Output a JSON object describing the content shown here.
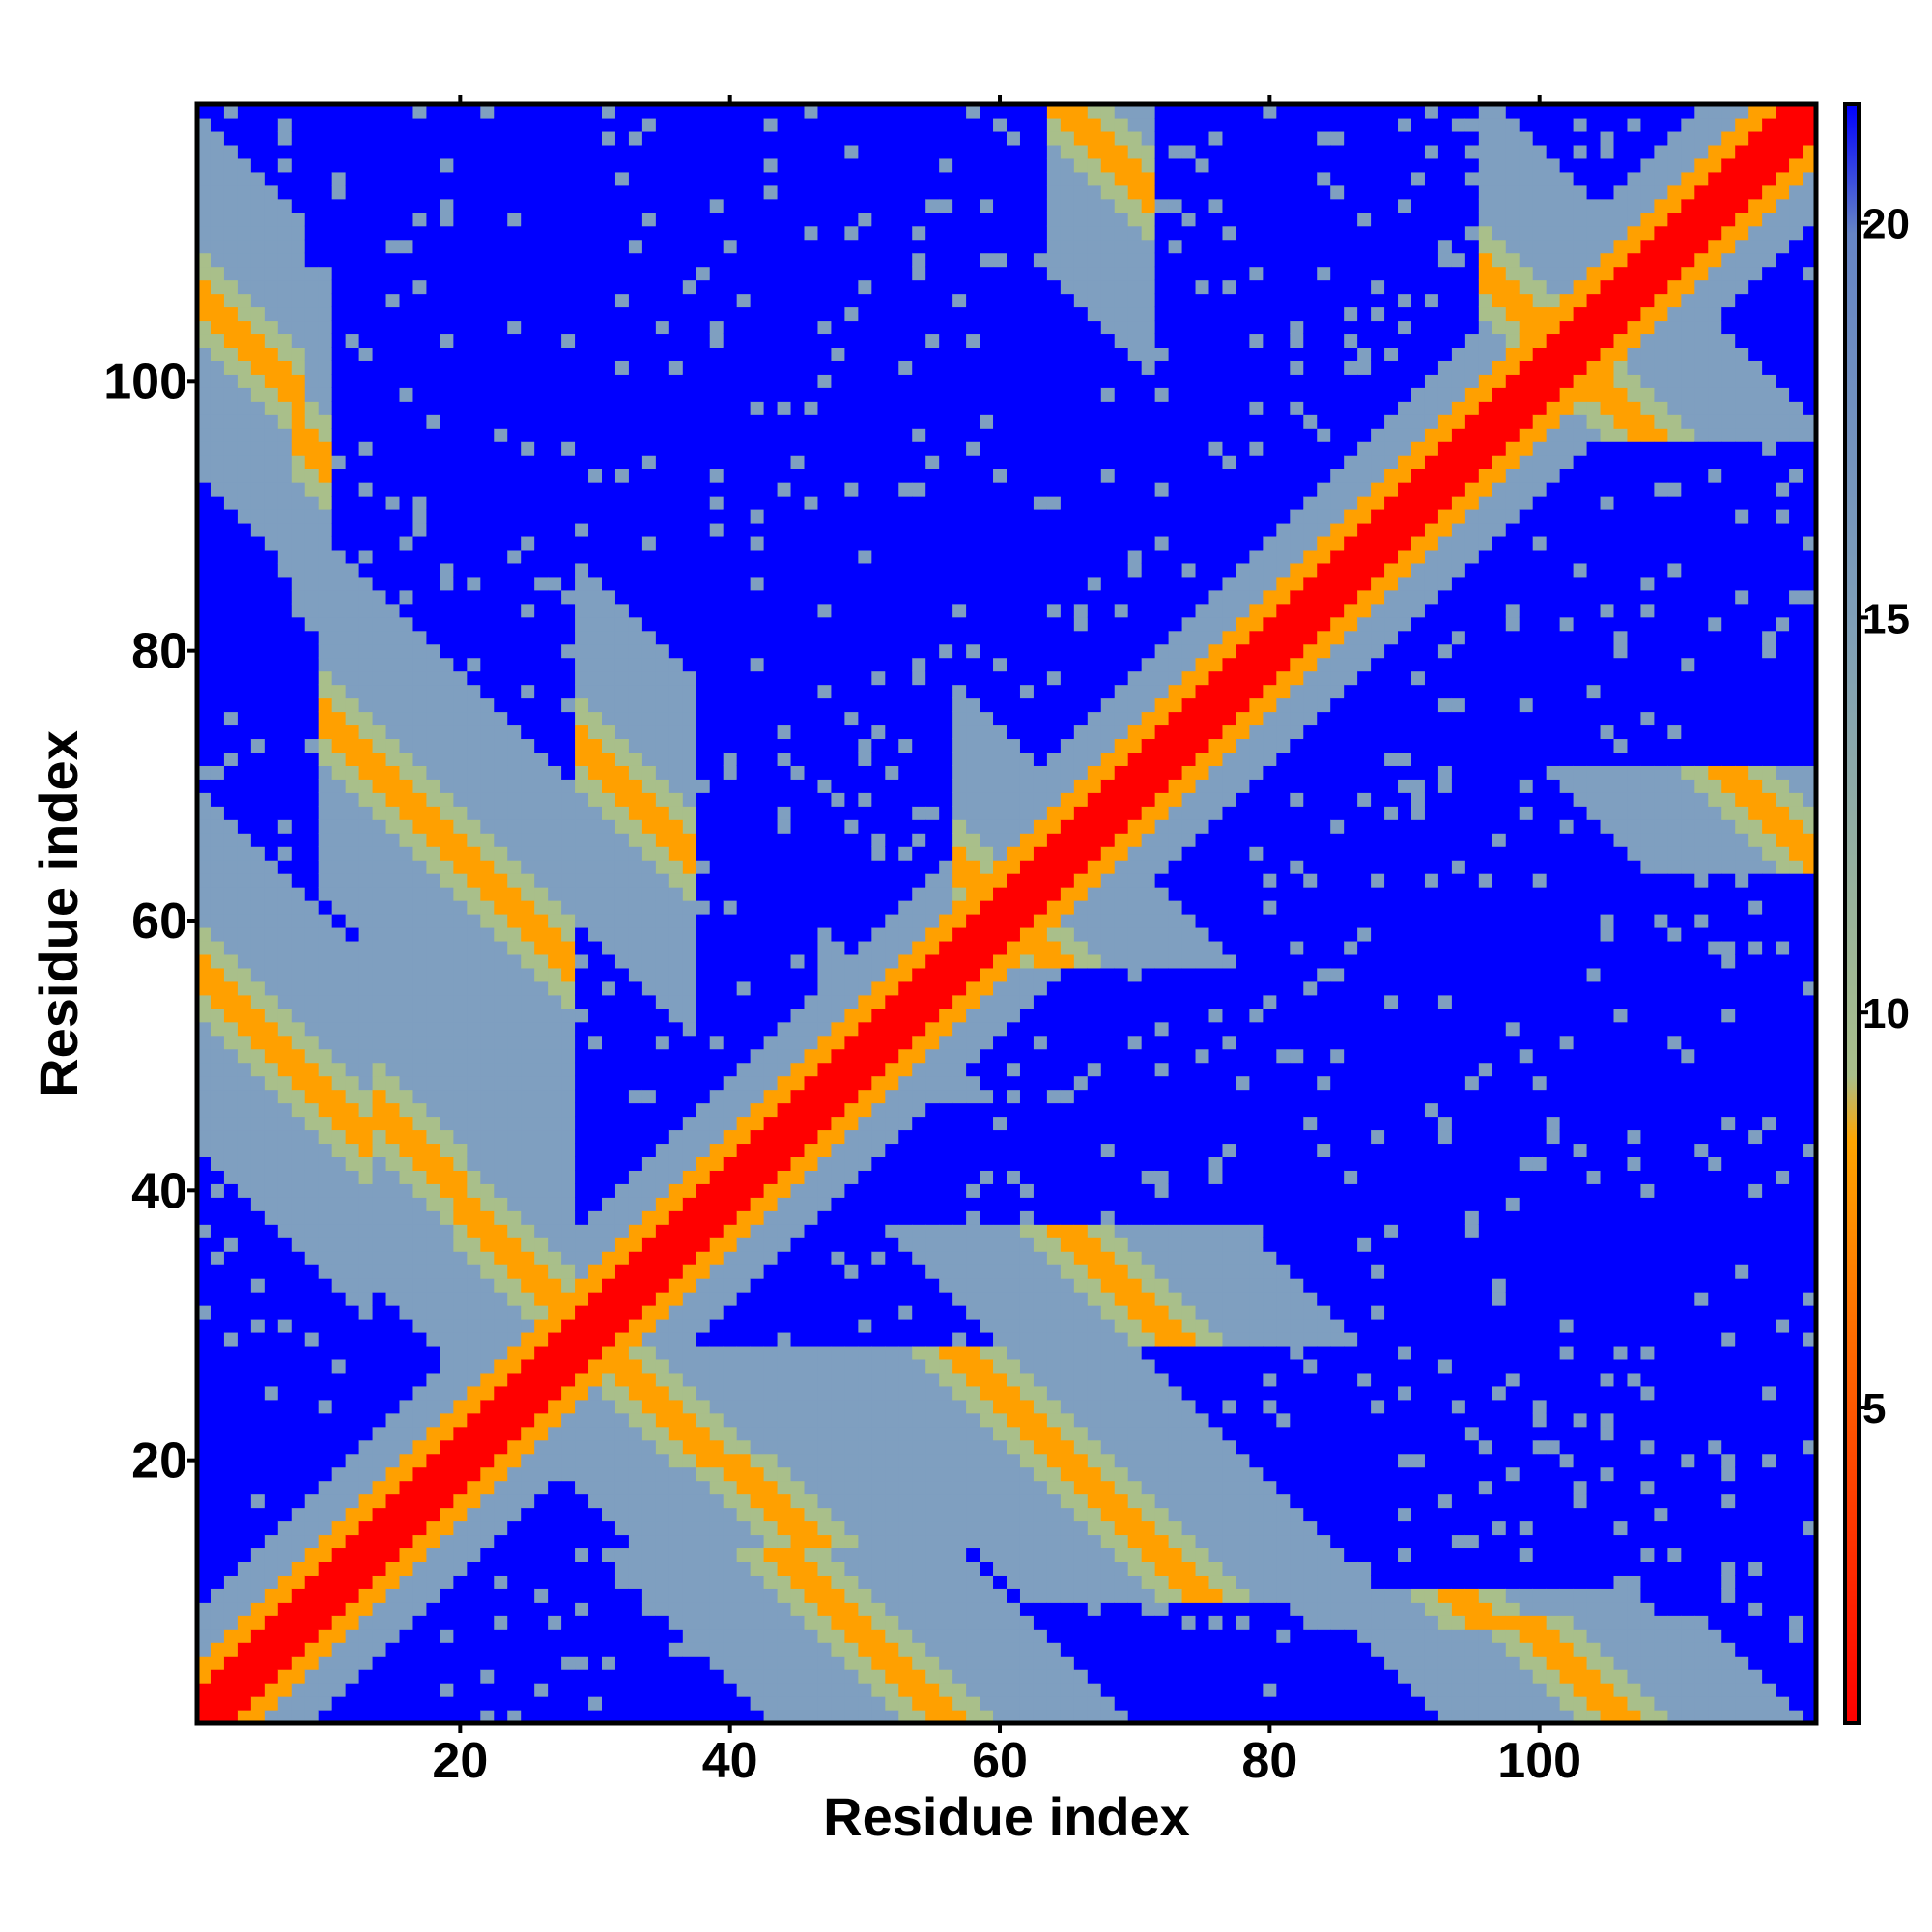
{
  "chart_data": {
    "type": "heatmap",
    "title": "",
    "xlabel": "Residue index",
    "ylabel": "Residue index",
    "xlim": [
      1,
      120
    ],
    "ylim": [
      1,
      120
    ],
    "x_ticks": [
      20,
      40,
      60,
      80,
      100
    ],
    "y_ticks": [
      20,
      40,
      60,
      80,
      100
    ],
    "n_residues": 120,
    "symmetric": true,
    "grid": false,
    "colorbar": {
      "ticks": [
        5,
        10,
        15,
        20
      ],
      "range": [
        1,
        21.5
      ],
      "stops": [
        {
          "value": 1,
          "color": "#ff0000"
        },
        {
          "value": 5,
          "color": "#ff5a00"
        },
        {
          "value": 8.5,
          "color": "#ffa500"
        },
        {
          "value": 9.5,
          "color": "#a9bf8a"
        },
        {
          "value": 15,
          "color": "#7f9fb8"
        },
        {
          "value": 20,
          "color": "#6685c6"
        },
        {
          "value": 21.5,
          "color": "#0000ff"
        }
      ]
    },
    "colors": {
      "contact": "#ff0000",
      "close": "#ffa000",
      "mid": "#a9bf8a",
      "far": "#7f9fc0",
      "background": "#0000ff"
    },
    "contact_bands": [
      {
        "center_sum": 121,
        "from": 57,
        "to": 64,
        "kind": "anti"
      },
      {
        "center_sum": 119,
        "from": 66,
        "to": 97,
        "kind": "anti"
      },
      {
        "center_sum": 104,
        "from": 8,
        "to": 10,
        "kind": "anti"
      },
      {
        "center_sum": 107,
        "from": 1,
        "to": 8,
        "kind": "anti"
      },
      {
        "center_sum": 102,
        "from": 29,
        "to": 37,
        "kind": "anti"
      },
      {
        "center_sum": 93,
        "from": 47,
        "to": 57,
        "kind": "anti"
      },
      {
        "center_sum": 85,
        "from": 10,
        "to": 28,
        "kind": "anti"
      },
      {
        "center_sum": 60,
        "from": 14,
        "to": 20,
        "kind": "anti"
      },
      {
        "center_sum": 59,
        "from": 20,
        "to": 28,
        "kind": "anti"
      },
      {
        "center_sum": 57,
        "from": 1,
        "to": 13,
        "kind": "anti"
      },
      {
        "center_sum": 204,
        "from": 96,
        "to": 108,
        "kind": "anti"
      },
      {
        "center_sum": 184,
        "from": 110,
        "to": 118,
        "kind": "anti"
      },
      {
        "center_sum": 185,
        "from": 64,
        "to": 71,
        "kind": "anti"
      }
    ]
  }
}
